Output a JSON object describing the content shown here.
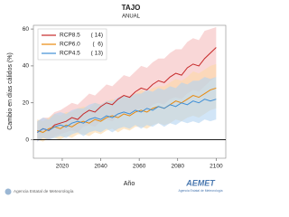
{
  "chart_data": {
    "type": "line",
    "title": "TAJO",
    "subtitle": "ANUAL",
    "xlabel": "Año",
    "ylabel": "Cambio en días cálidos (%)",
    "x": [
      2007,
      2010,
      2013,
      2016,
      2019,
      2022,
      2025,
      2028,
      2031,
      2034,
      2037,
      2040,
      2043,
      2046,
      2049,
      2052,
      2055,
      2058,
      2061,
      2064,
      2067,
      2070,
      2073,
      2076,
      2079,
      2082,
      2085,
      2088,
      2091,
      2094,
      2097,
      2100
    ],
    "xlim": [
      2005,
      2105
    ],
    "xticks": [
      2020,
      2040,
      2060,
      2080,
      2100
    ],
    "ylim": [
      -10,
      62
    ],
    "yticks": [
      0,
      20,
      40,
      60
    ],
    "legend": "upper left",
    "series": [
      {
        "name": "RCP8.5",
        "legend_note": "( 14)",
        "color": "#c62828",
        "band_color": "#f5bcbc",
        "values": [
          4,
          6,
          5,
          8,
          9,
          10,
          12,
          11,
          14,
          16,
          15,
          18,
          20,
          19,
          22,
          24,
          23,
          26,
          28,
          27,
          30,
          32,
          31,
          34,
          36,
          35,
          39,
          41,
          40,
          44,
          47,
          50
        ],
        "lower": [
          -1,
          1,
          0,
          2,
          3,
          4,
          5,
          4,
          7,
          8,
          7,
          10,
          11,
          10,
          13,
          14,
          13,
          16,
          17,
          16,
          19,
          20,
          19,
          22,
          23,
          22,
          25,
          27,
          26,
          29,
          32,
          34
        ],
        "upper": [
          10,
          12,
          12,
          15,
          16,
          18,
          20,
          19,
          22,
          25,
          24,
          27,
          30,
          29,
          32,
          35,
          34,
          37,
          40,
          39,
          42,
          44,
          44,
          47,
          49,
          49,
          53,
          55,
          54,
          59,
          60,
          61
        ]
      },
      {
        "name": "RCP6.0",
        "legend_note": "(  6)",
        "color": "#e8890c",
        "band_color": "#fbd9a6",
        "values": [
          5,
          4,
          6,
          7,
          6,
          8,
          7,
          9,
          10,
          9,
          11,
          10,
          12,
          13,
          12,
          14,
          13,
          15,
          16,
          15,
          17,
          18,
          17,
          19,
          21,
          20,
          22,
          24,
          23,
          25,
          27,
          28
        ],
        "lower": [
          0,
          -1,
          1,
          1,
          0,
          2,
          1,
          3,
          3,
          2,
          4,
          3,
          5,
          6,
          4,
          6,
          5,
          7,
          7,
          6,
          8,
          9,
          8,
          9,
          11,
          10,
          12,
          13,
          12,
          14,
          16,
          17
        ],
        "upper": [
          11,
          10,
          12,
          14,
          13,
          15,
          15,
          17,
          18,
          17,
          20,
          19,
          21,
          22,
          21,
          24,
          23,
          25,
          27,
          26,
          28,
          29,
          29,
          31,
          33,
          32,
          34,
          37,
          36,
          38,
          40,
          41
        ]
      },
      {
        "name": "RCP4.5",
        "legend_note": "( 13)",
        "color": "#3f8fd6",
        "band_color": "#b3d4f2",
        "values": [
          4,
          6,
          5,
          7,
          8,
          7,
          9,
          10,
          9,
          11,
          12,
          11,
          13,
          12,
          14,
          15,
          14,
          16,
          15,
          17,
          16,
          18,
          17,
          19,
          18,
          20,
          19,
          21,
          20,
          22,
          21,
          22
        ],
        "lower": [
          -1,
          1,
          0,
          1,
          2,
          1,
          3,
          4,
          2,
          4,
          5,
          4,
          6,
          4,
          6,
          7,
          6,
          8,
          6,
          8,
          7,
          9,
          7,
          9,
          8,
          10,
          9,
          10,
          9,
          11,
          10,
          11
        ],
        "upper": [
          10,
          12,
          11,
          14,
          15,
          14,
          16,
          17,
          17,
          19,
          20,
          19,
          21,
          21,
          23,
          24,
          23,
          25,
          25,
          27,
          26,
          28,
          27,
          29,
          28,
          31,
          30,
          32,
          32,
          34,
          33,
          34
        ]
      }
    ]
  },
  "footer": {
    "agency": "Agencia Estatal de Meteorología",
    "logo": "AEMET",
    "logo_sub": "Agencia Estatal de Meteorología"
  }
}
